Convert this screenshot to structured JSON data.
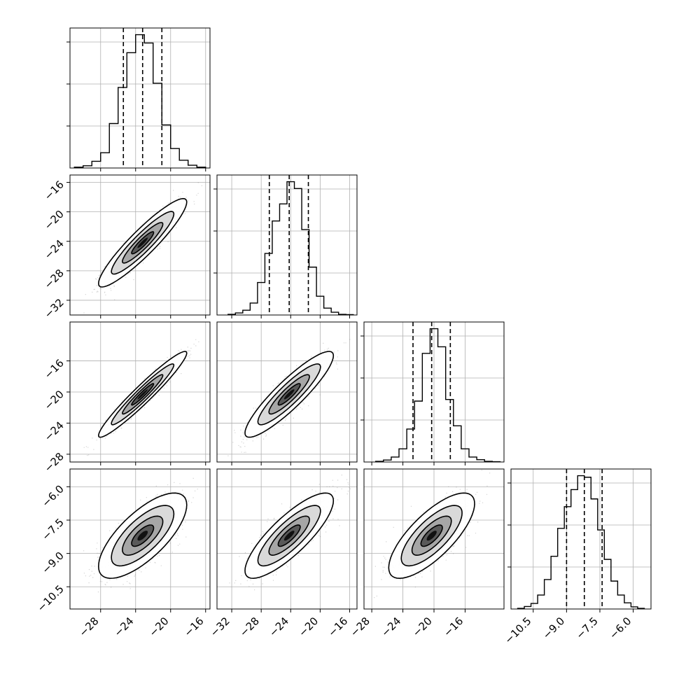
{
  "chart_data": {
    "type": "corner",
    "style": {
      "grid": true,
      "line_color": "#000000",
      "grid_color": "#b0b0b0",
      "point_color": "#808080"
    },
    "parameters": [
      {
        "range": [
          -31.5,
          -15.5
        ],
        "ticks": [
          -28,
          -24,
          -20,
          -16
        ],
        "tick_labels": [
          "−28",
          "−24",
          "−20",
          "−16"
        ],
        "quantiles": [
          -25.4,
          -23.2,
          -21.0
        ],
        "hist_edges": [
          -31.0,
          -30.0,
          -29.0,
          -28.0,
          -27.0,
          -26.0,
          -25.0,
          -24.0,
          -23.0,
          -22.0,
          -21.0,
          -20.0,
          -19.0,
          -18.0,
          -17.0,
          -16.0
        ],
        "hist_counts": [
          3,
          8,
          24,
          55,
          160,
          290,
          415,
          480,
          450,
          305,
          155,
          70,
          28,
          10,
          3
        ]
      },
      {
        "range": [
          -34.0,
          -15.0
        ],
        "ticks": [
          -32,
          -28,
          -24,
          -20,
          -16
        ],
        "tick_labels": [
          "−32",
          "−28",
          "−24",
          "−20",
          "−16"
        ],
        "quantiles": [
          -26.9,
          -24.2,
          -21.6
        ],
        "hist_edges": [
          -32.5,
          -31.5,
          -30.5,
          -29.5,
          -28.5,
          -27.5,
          -26.5,
          -25.5,
          -24.5,
          -23.5,
          -22.5,
          -21.5,
          -20.5,
          -19.5,
          -18.5,
          -17.5,
          -16.5,
          -15.5
        ],
        "hist_counts": [
          2,
          6,
          14,
          35,
          95,
          180,
          275,
          325,
          390,
          370,
          250,
          140,
          55,
          20,
          8,
          2,
          1
        ]
      },
      {
        "range": [
          -29.0,
          -11.0
        ],
        "ticks": [
          -28,
          -24,
          -20,
          -16
        ],
        "tick_labels": [
          "−28",
          "−24",
          "−20",
          "−16"
        ],
        "y_ticks": [
          -28,
          -24,
          -20,
          -16
        ],
        "y_tick_labels": [
          "−28",
          "−24",
          "−20",
          "−16"
        ],
        "quantiles": [
          -22.7,
          -20.3,
          -17.9
        ],
        "hist_edges": [
          -27.5,
          -26.5,
          -25.5,
          -24.5,
          -23.5,
          -22.5,
          -21.5,
          -20.5,
          -19.5,
          -18.5,
          -17.5,
          -16.5,
          -15.5,
          -14.5,
          -13.5,
          -12.5,
          -11.5
        ],
        "hist_counts": [
          2,
          6,
          15,
          40,
          100,
          185,
          330,
          405,
          350,
          190,
          110,
          40,
          15,
          7,
          2,
          1
        ]
      },
      {
        "range": [
          -11.5,
          -5.2
        ],
        "ticks": [
          -10.5,
          -9.0,
          -7.5,
          -6.0
        ],
        "tick_labels": [
          "−10.5",
          "−9.0",
          "−7.5",
          "−6.0"
        ],
        "quantiles": [
          -9.0,
          -8.2,
          -7.4
        ],
        "hist_edges": [
          -11.2,
          -10.9,
          -10.6,
          -10.3,
          -10.0,
          -9.7,
          -9.4,
          -9.1,
          -8.8,
          -8.5,
          -8.2,
          -7.9,
          -7.6,
          -7.3,
          -7.0,
          -6.7,
          -6.4,
          -6.1,
          -5.8,
          -5.5
        ],
        "hist_counts": [
          2,
          8,
          18,
          45,
          95,
          170,
          260,
          330,
          385,
          430,
          425,
          355,
          255,
          160,
          90,
          45,
          20,
          7,
          2
        ]
      }
    ],
    "pairs": [
      {
        "row": 1,
        "col": 0,
        "y_ticks": [
          -32,
          -28,
          -24,
          -20,
          -16
        ],
        "y_tick_labels": [
          "−32",
          "−28",
          "−24",
          "−20",
          "−16"
        ],
        "mean": [
          -23.2,
          -24.2
        ],
        "sd": [
          2.1,
          2.5
        ],
        "corr": 0.92
      },
      {
        "row": 2,
        "col": 0,
        "y_ticks": [
          -28,
          -24,
          -20,
          -16
        ],
        "y_tick_labels": [
          "−28",
          "−24",
          "−20",
          "−16"
        ],
        "mean": [
          -23.2,
          -20.3
        ],
        "sd": [
          2.1,
          2.3
        ],
        "corr": 0.96
      },
      {
        "row": 2,
        "col": 1,
        "mean": [
          -24.2,
          -20.3
        ],
        "sd": [
          2.5,
          2.3
        ],
        "corr": 0.9
      },
      {
        "row": 3,
        "col": 0,
        "y_ticks": [
          -10.5,
          -9.0,
          -7.5,
          -6.0
        ],
        "y_tick_labels": [
          "−10.5",
          "−9.0",
          "−7.5",
          "−6.0"
        ],
        "mean": [
          -23.2,
          -8.2
        ],
        "sd": [
          2.1,
          0.8
        ],
        "corr": 0.72
      },
      {
        "row": 3,
        "col": 1,
        "mean": [
          -24.2,
          -8.2
        ],
        "sd": [
          2.5,
          0.8
        ],
        "corr": 0.82
      },
      {
        "row": 3,
        "col": 2,
        "mean": [
          -20.3,
          -8.2
        ],
        "sd": [
          2.3,
          0.8
        ],
        "corr": 0.75
      }
    ]
  }
}
